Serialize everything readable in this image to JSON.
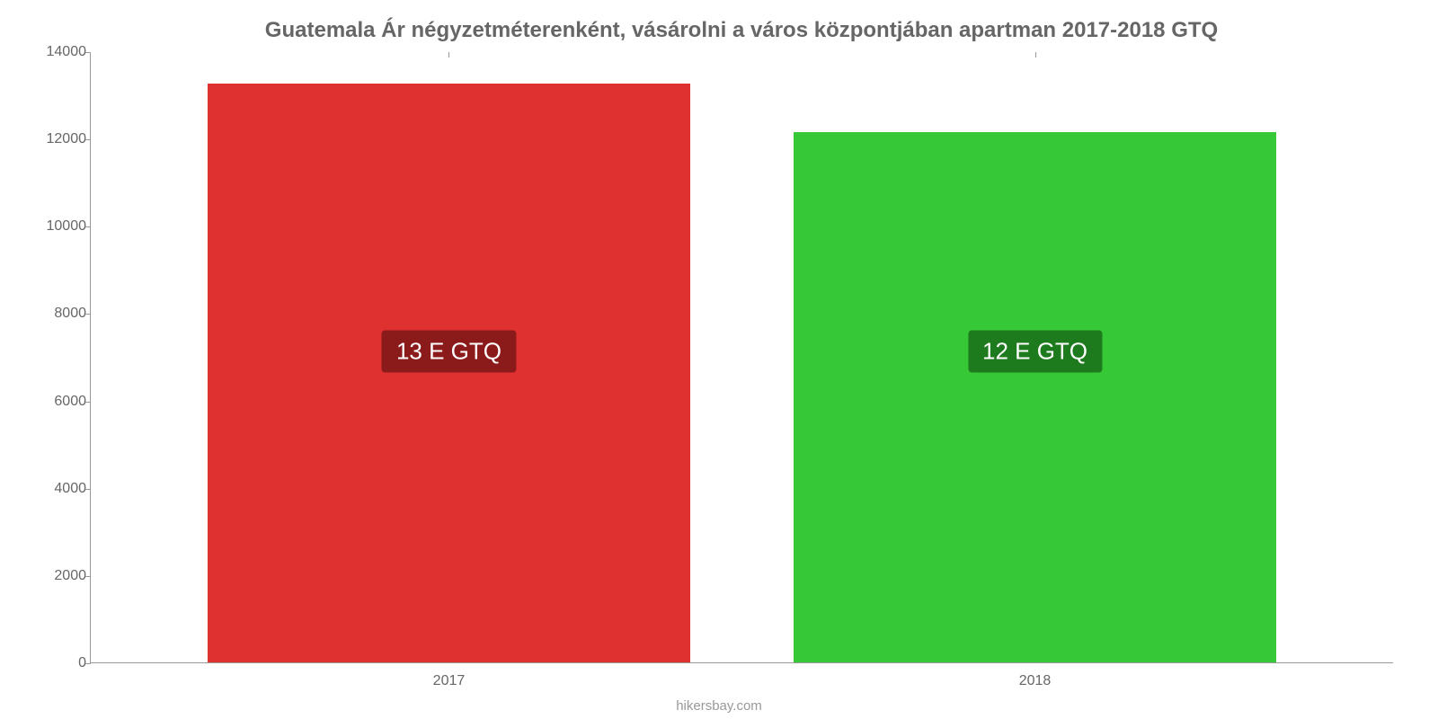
{
  "chart": {
    "type": "bar",
    "title": "Guatemala Ár négyzetméterenként, vásárolni a város központjában apartman 2017-2018 GTQ",
    "title_fontsize": 24,
    "title_color": "#666666",
    "background_color": "#ffffff",
    "axis_color": "#999999",
    "tick_label_color": "#666666",
    "tick_label_fontsize": 16,
    "categories": [
      "2017",
      "2018"
    ],
    "values": [
      13250,
      12150
    ],
    "bar_colors": [
      "#e03131",
      "#37c837"
    ],
    "bar_labels": [
      "13 E GTQ",
      "12 E GTQ"
    ],
    "bar_label_bg": [
      "#8b1a1a",
      "#1d7a1d"
    ],
    "bar_label_color": "#ffffff",
    "bar_label_fontsize": 26,
    "ylim": [
      0,
      14000
    ],
    "yticks": [
      0,
      2000,
      4000,
      6000,
      8000,
      10000,
      12000,
      14000
    ],
    "bar_width_pct": 37,
    "bar_gap_pct": 8,
    "plot_area_height": 680,
    "plot_area_width": 1450,
    "source": "hikersbay.com",
    "source_color": "#999999",
    "source_fontsize": 15
  }
}
